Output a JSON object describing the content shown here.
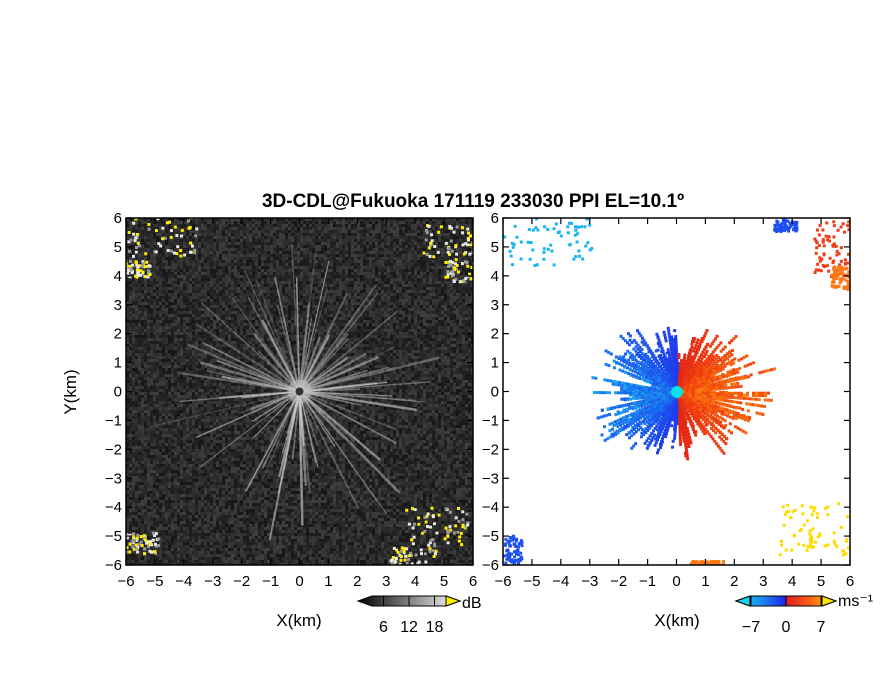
{
  "title": "3D-CDL@Fukuoka 171119 233030 PPI EL=10.1º",
  "colors": {
    "background": "#ffffff",
    "axis": "#000000",
    "reflectivity_base": "#262626",
    "highlight": "#ffee00",
    "vel_neg": "#1e50f0",
    "vel_cyan": "#19b4f0",
    "vel_pos": "#f03c14",
    "vel_orange": "#ff7814",
    "vel_yellow": "#ffdc00",
    "radar_site": "#00e6e6"
  },
  "chart_data": [
    {
      "type": "heatmap",
      "name": "reflectivity-ppi",
      "xlabel": "X(km)",
      "ylabel": "Y(km)",
      "xlim": [
        -6,
        6
      ],
      "ylim": [
        -6,
        6
      ],
      "xticks": [
        -6,
        -5,
        -4,
        -3,
        -2,
        -1,
        0,
        1,
        2,
        3,
        4,
        5,
        6
      ],
      "yticks": [
        -6,
        -5,
        -4,
        -3,
        -2,
        -1,
        0,
        1,
        2,
        3,
        4,
        5,
        6
      ],
      "tick_labels": [
        "−6",
        "−5",
        "−4",
        "−3",
        "−2",
        "−1",
        "0",
        "1",
        "2",
        "3",
        "4",
        "5",
        "6"
      ],
      "colorbar": {
        "unit": "dB",
        "ticks": [
          6,
          12,
          18
        ],
        "range": [
          0,
          24
        ]
      }
    },
    {
      "type": "heatmap",
      "name": "doppler-velocity-ppi",
      "xlabel": "X(km)",
      "xlim": [
        -6,
        6
      ],
      "ylim": [
        -6,
        6
      ],
      "xticks": [
        -6,
        -5,
        -4,
        -3,
        -2,
        -1,
        0,
        1,
        2,
        3,
        4,
        5,
        6
      ],
      "yticks": [
        -6,
        -5,
        -4,
        -3,
        -2,
        -1,
        0,
        1,
        2,
        3,
        4,
        5,
        6
      ],
      "tick_labels": [
        "−6",
        "−5",
        "−4",
        "−3",
        "−2",
        "−1",
        "0",
        "1",
        "2",
        "3",
        "4",
        "5",
        "6"
      ],
      "colorbar": {
        "unit": "ms⁻¹",
        "ticks": [
          -7,
          0,
          7
        ],
        "tick_labels": [
          "−7",
          "0",
          "7"
        ],
        "range": [
          -10,
          10
        ]
      }
    }
  ]
}
